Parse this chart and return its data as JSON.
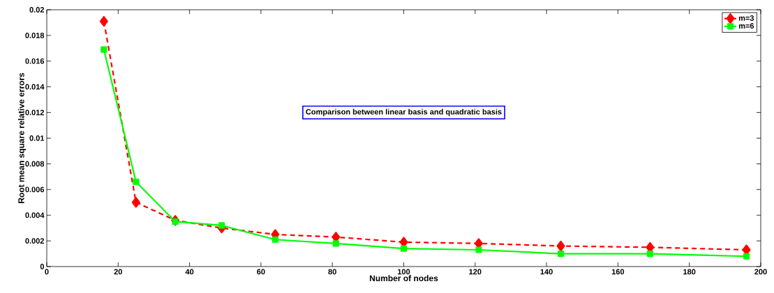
{
  "chart_data": {
    "type": "line",
    "xlabel": "Number of nodes",
    "ylabel": "Root mean square relative errors",
    "x": [
      16,
      25,
      36,
      49,
      64,
      81,
      100,
      121,
      144,
      169,
      196
    ],
    "series": [
      {
        "name": "m=3",
        "color": "#ff0000",
        "marker": "diamond",
        "line_style": "dashed",
        "values": [
          0.0191,
          0.005,
          0.0036,
          0.003,
          0.0025,
          0.0023,
          0.0019,
          0.0018,
          0.0016,
          0.0015,
          0.0013
        ]
      },
      {
        "name": "m=6",
        "color": "#00ff00",
        "marker": "square",
        "line_style": "solid",
        "values": [
          0.0169,
          0.0066,
          0.0035,
          0.0032,
          0.0021,
          0.0018,
          0.0014,
          0.0013,
          0.001,
          0.001,
          0.0008
        ]
      }
    ],
    "xlim": [
      0,
      200
    ],
    "ylim": [
      0,
      0.02
    ],
    "xticks": [
      0,
      20,
      40,
      60,
      80,
      100,
      120,
      140,
      160,
      180,
      200
    ],
    "yticks": [
      0,
      0.002,
      0.004,
      0.006,
      0.008,
      0.01,
      0.012,
      0.014,
      0.016,
      0.018,
      0.02
    ],
    "legend": "top right",
    "grid": false,
    "annotations": [
      "Comparison between linear basis and quadratic basis"
    ]
  }
}
